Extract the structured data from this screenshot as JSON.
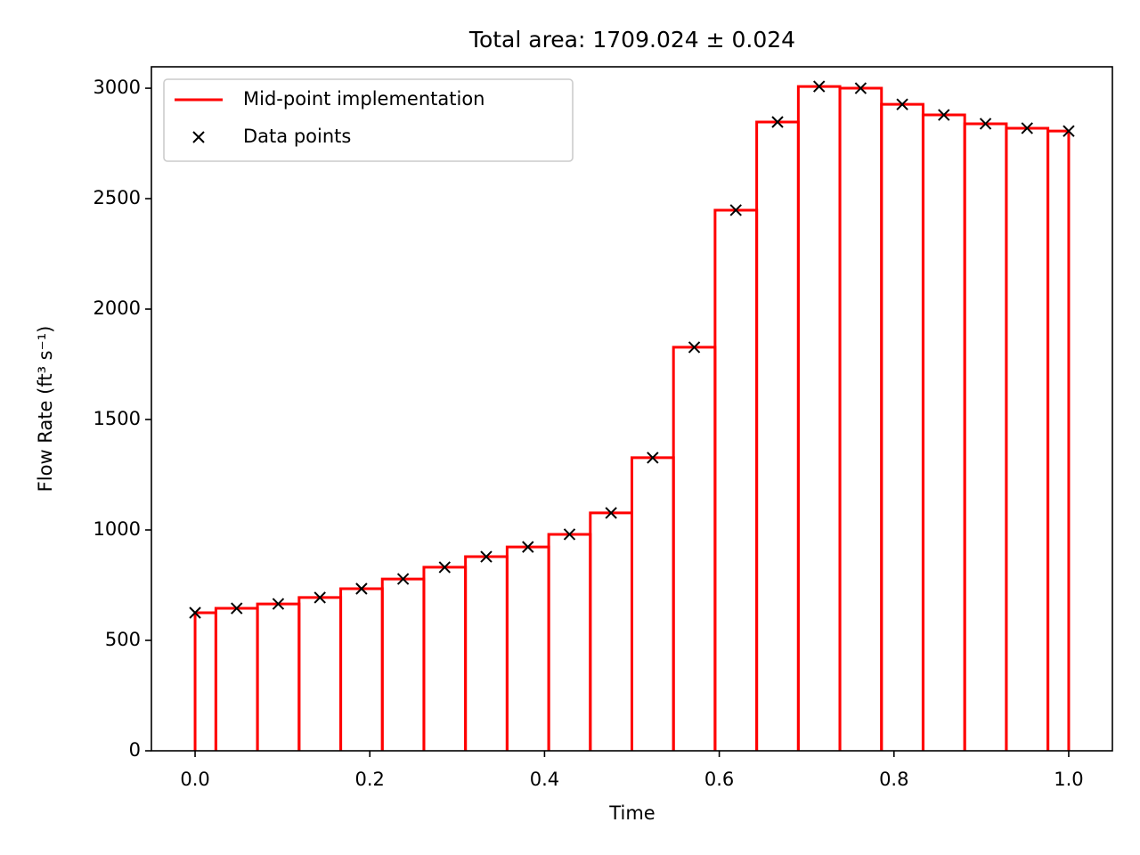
{
  "chart_data": {
    "type": "midpoint",
    "title": "Total area: 1709.024 ± 0.024",
    "x_label": "Time",
    "y_label": "Flow Rate (ft³ s⁻¹)",
    "x": [
      0,
      0.0476,
      0.0952,
      0.1429,
      0.1905,
      0.2381,
      0.2857,
      0.3333,
      0.381,
      0.4286,
      0.4762,
      0.5238,
      0.5714,
      0.619,
      0.6667,
      0.7143,
      0.7619,
      0.8095,
      0.8571,
      0.9048,
      0.9524,
      1
    ],
    "series": [
      {
        "name": "Mid-point implementation",
        "color": "#ff0000",
        "values": [
          625,
          645,
          665,
          694,
          734,
          778,
          831,
          879,
          923,
          980,
          1077,
          1327,
          1827,
          2448,
          2847,
          3008,
          3000,
          2927,
          2879,
          2839,
          2819,
          2806
        ]
      },
      {
        "name": "Data points",
        "color": "#000000",
        "marker": "x",
        "values": [
          625,
          645,
          665,
          694,
          734,
          778,
          831,
          879,
          923,
          980,
          1077,
          1327,
          1827,
          2448,
          2847,
          3008,
          3000,
          2927,
          2879,
          2839,
          2819,
          2806
        ]
      }
    ],
    "xlim": [
      -0.05,
      1.05
    ],
    "ylim": [
      0,
      3097
    ],
    "xticks": [
      {
        "value": 0,
        "label": "0.0"
      },
      0.2,
      0.4,
      0.6,
      0.8,
      {
        "value": 1,
        "label": "1.0"
      }
    ],
    "yticks": [
      0,
      500,
      1000,
      1500,
      2000,
      2500,
      3000
    ],
    "legend": "upper left",
    "grid": false
  }
}
